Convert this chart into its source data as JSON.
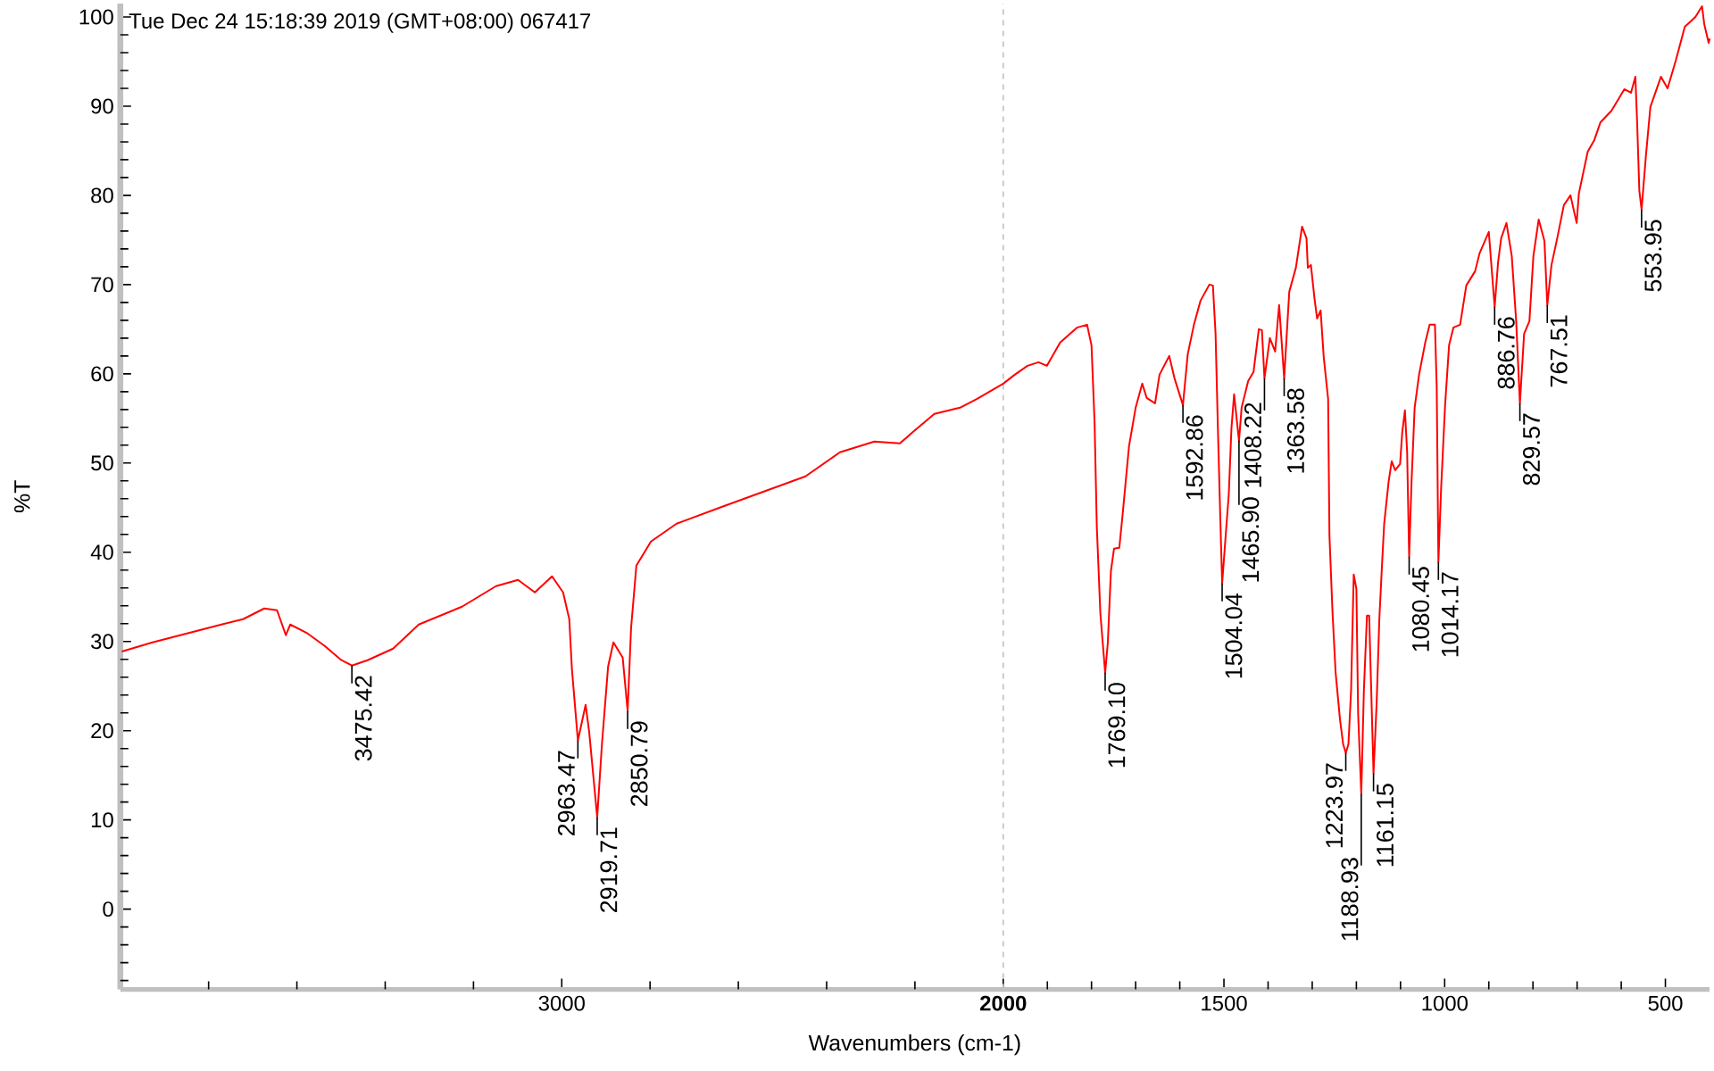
{
  "chart_data": {
    "type": "line",
    "title": "Tue Dec 24 15:18:39 2019 (GMT+08:00) 067417",
    "xlabel": "Wavenumbers (cm-1)",
    "ylabel": "%T",
    "color": "#ff0000",
    "xlim": [
      4000,
      400
    ],
    "ylim": [
      -9,
      101.5
    ],
    "xticks": [
      {
        "value": 3800,
        "label": null
      },
      {
        "value": 3600,
        "label": null
      },
      {
        "value": 3400,
        "label": null
      },
      {
        "value": 3200,
        "label": null
      },
      3000,
      {
        "value": 2800,
        "label": null
      },
      {
        "value": 2600,
        "label": null
      },
      {
        "value": 2400,
        "label": null
      },
      {
        "value": 2200,
        "label": null
      },
      {
        "value": 2000,
        "label": "**2000**"
      },
      {
        "value": 1900,
        "label": null
      },
      {
        "value": 1800,
        "label": null
      },
      {
        "value": 1700,
        "label": null
      },
      {
        "value": 1600,
        "label": null
      },
      1500,
      {
        "value": 1400,
        "label": null
      },
      {
        "value": 1300,
        "label": null
      },
      {
        "value": 1200,
        "label": null
      },
      {
        "value": 1100,
        "label": null
      },
      1000,
      {
        "value": 900,
        "label": null
      },
      {
        "value": 800,
        "label": null
      },
      {
        "value": 700,
        "label": null
      },
      {
        "value": 600,
        "label": null
      },
      500
    ],
    "yticks": [
      {
        "value": -8,
        "label": null
      },
      {
        "value": -6,
        "label": null
      },
      {
        "value": -4,
        "label": null
      },
      {
        "value": -2,
        "label": null
      },
      0,
      {
        "value": 2,
        "label": null
      },
      {
        "value": 4,
        "label": null
      },
      {
        "value": 6,
        "label": null
      },
      {
        "value": 8,
        "label": null
      },
      10,
      {
        "value": 12,
        "label": null
      },
      {
        "value": 14,
        "label": null
      },
      {
        "value": 16,
        "label": null
      },
      {
        "value": 18,
        "label": null
      },
      20,
      {
        "value": 22,
        "label": null
      },
      {
        "value": 24,
        "label": null
      },
      {
        "value": 26,
        "label": null
      },
      {
        "value": 28,
        "label": null
      },
      30,
      {
        "value": 32,
        "label": null
      },
      {
        "value": 34,
        "label": null
      },
      {
        "value": 36,
        "label": null
      },
      {
        "value": 38,
        "label": null
      },
      40,
      {
        "value": 42,
        "label": null
      },
      {
        "value": 44,
        "label": null
      },
      {
        "value": 46,
        "label": null
      },
      {
        "value": 48,
        "label": null
      },
      50,
      {
        "value": 52,
        "label": null
      },
      {
        "value": 54,
        "label": null
      },
      {
        "value": 56,
        "label": null
      },
      {
        "value": 58,
        "label": null
      },
      60,
      {
        "value": 62,
        "label": null
      },
      {
        "value": 64,
        "label": null
      },
      {
        "value": 66,
        "label": null
      },
      {
        "value": 68,
        "label": null
      },
      70,
      {
        "value": 72,
        "label": null
      },
      {
        "value": 74,
        "label": null
      },
      {
        "value": 76,
        "label": null
      },
      {
        "value": 78,
        "label": null
      },
      80,
      {
        "value": 82,
        "label": null
      },
      {
        "value": 84,
        "label": null
      },
      {
        "value": 86,
        "label": null
      },
      {
        "value": 88,
        "label": null
      },
      90,
      {
        "value": 92,
        "label": null
      },
      {
        "value": 94,
        "label": null
      },
      {
        "value": 96,
        "label": null
      },
      {
        "value": 98,
        "label": null
      },
      100
    ],
    "ref_lines": [
      {
        "axis": "x",
        "value": 2000,
        "color": "#c0c0c0",
        "line_style": "dashed"
      }
    ],
    "x": [
      3995,
      3927,
      3849,
      3771,
      3722,
      3674,
      3645,
      3625,
      3615,
      3576,
      3537,
      3499,
      3475.42,
      3440,
      3382,
      3324,
      3226,
      3149,
      3099,
      3061,
      3022,
      2997,
      2983,
      2977,
      2963.47,
      2946,
      2938,
      2919.71,
      2909,
      2895,
      2883,
      2862,
      2850.79,
      2843,
      2831,
      2798,
      2740,
      2642,
      2448,
      2370,
      2292,
      2234,
      2204,
      2156,
      2098,
      2059,
      2000,
      1974,
      1945,
      1920,
      1901,
      1871,
      1832,
      1810,
      1800,
      1793,
      1788,
      1780,
      1769.1,
      1763,
      1756,
      1749,
      1737,
      1729,
      1715,
      1700,
      1685,
      1675,
      1656,
      1646,
      1624,
      1612,
      1592.86,
      1582,
      1568,
      1553,
      1533,
      1525,
      1519,
      1514,
      1509,
      1504.04,
      1496,
      1489,
      1483,
      1477,
      1465.9,
      1460,
      1445,
      1433,
      1421,
      1414,
      1408.22,
      1396,
      1384,
      1375,
      1363.58,
      1352,
      1337,
      1323,
      1313,
      1310,
      1303,
      1295,
      1289,
      1281,
      1274,
      1264,
      1261,
      1254,
      1247,
      1237,
      1230,
      1223.97,
      1218,
      1212,
      1206,
      1200,
      1196,
      1188.93,
      1183,
      1176,
      1171,
      1166,
      1161.15,
      1154,
      1148,
      1142,
      1137,
      1127,
      1120,
      1112,
      1101,
      1096,
      1090,
      1085,
      1080.45,
      1075,
      1068,
      1058,
      1044,
      1034,
      1022,
      1018,
      1014.17,
      1008,
      999,
      990,
      980,
      965,
      951,
      931,
      921,
      900,
      886.76,
      879,
      872,
      860,
      848,
      838,
      829.57,
      820,
      808,
      799,
      787,
      774,
      767.51,
      758,
      745,
      730,
      715,
      701,
      696,
      676,
      661,
      647,
      622,
      593,
      578,
      568,
      564,
      559,
      553.95,
      544,
      534,
      510,
      495,
      476,
      456,
      432,
      417,
      412,
      402,
      400
    ],
    "values": [
      28.9,
      29.9,
      30.9,
      31.9,
      32.5,
      33.7,
      33.5,
      30.7,
      31.9,
      30.9,
      29.5,
      27.9,
      27.3,
      27.9,
      29.2,
      31.9,
      33.9,
      36.2,
      36.9,
      35.5,
      37.3,
      35.5,
      32.5,
      26.9,
      18.9,
      22.9,
      19.9,
      10.3,
      18.5,
      27.2,
      29.9,
      28.2,
      22.2,
      31.5,
      38.5,
      41.2,
      43.2,
      45.0,
      48.5,
      51.2,
      52.4,
      52.2,
      53.5,
      55.5,
      56.2,
      57.2,
      58.9,
      59.9,
      60.9,
      61.3,
      60.9,
      63.5,
      65.2,
      65.5,
      63.2,
      54.5,
      42.9,
      33.2,
      26.5,
      29.9,
      37.9,
      40.4,
      40.5,
      44.5,
      51.9,
      56.2,
      58.9,
      57.3,
      56.7,
      59.9,
      62.0,
      59.5,
      56.5,
      62.2,
      65.5,
      68.2,
      70.0,
      69.9,
      64.5,
      54.5,
      45.2,
      36.5,
      41.9,
      46.5,
      53.9,
      57.7,
      52.5,
      56.2,
      59.2,
      60.2,
      65.0,
      64.9,
      59.5,
      64.0,
      62.5,
      67.7,
      59.5,
      69.2,
      71.9,
      76.5,
      75.2,
      71.9,
      72.2,
      68.5,
      66.2,
      67.1,
      61.9,
      57.2,
      41.9,
      33.2,
      26.5,
      21.2,
      18.5,
      17.5,
      18.5,
      24.5,
      37.5,
      35.9,
      21.9,
      12.9,
      24.5,
      32.9,
      32.9,
      23.9,
      15.2,
      23.2,
      32.5,
      38.5,
      43.2,
      47.9,
      50.2,
      49.2,
      49.9,
      53.5,
      55.9,
      51.2,
      39.5,
      47.9,
      56.2,
      59.9,
      63.5,
      65.5,
      65.5,
      58.5,
      38.9,
      47.2,
      56.5,
      63.2,
      65.2,
      65.5,
      69.9,
      71.5,
      73.5,
      75.9,
      67.5,
      72.5,
      75.2,
      76.9,
      73.2,
      65.9,
      56.7,
      64.5,
      65.9,
      73.2,
      77.3,
      74.9,
      67.7,
      72.2,
      75.2,
      78.9,
      80.0,
      76.9,
      80.2,
      84.9,
      86.2,
      88.2,
      89.5,
      91.9,
      91.5,
      93.3,
      88.2,
      80.5,
      78.4,
      84.5,
      89.9,
      93.3,
      92.0,
      95.2,
      98.9,
      100.0,
      101.2,
      99.2,
      97.1,
      97.5
    ],
    "annotations": [
      {
        "text": "3475.42",
        "x": 3475.42,
        "y": 27.3
      },
      {
        "text": "2963.47",
        "x": 2963.47,
        "y": 18.9
      },
      {
        "text": "2919.71",
        "x": 2919.71,
        "y": 10.3
      },
      {
        "text": "2850.79",
        "x": 2850.79,
        "y": 22.2
      },
      {
        "text": "1769.10",
        "x": 1769.1,
        "y": 26.5
      },
      {
        "text": "1592.86",
        "x": 1592.86,
        "y": 56.5
      },
      {
        "text": "1504.04",
        "x": 1504.04,
        "y": 36.5
      },
      {
        "text": "1465.90",
        "x": 1465.9,
        "y": 52.5
      },
      {
        "text": "1408.22",
        "x": 1408.22,
        "y": 59.5
      },
      {
        "text": "1363.58",
        "x": 1363.58,
        "y": 59.5
      },
      {
        "text": "1223.97",
        "x": 1223.97,
        "y": 17.5
      },
      {
        "text": "1188.93",
        "x": 1188.93,
        "y": 12.9
      },
      {
        "text": "1161.15",
        "x": 1161.15,
        "y": 15.2
      },
      {
        "text": "1080.45",
        "x": 1080.45,
        "y": 39.5
      },
      {
        "text": "1014.17",
        "x": 1014.17,
        "y": 38.9
      },
      {
        "text": "886.76",
        "x": 886.76,
        "y": 67.5
      },
      {
        "text": "829.57",
        "x": 829.57,
        "y": 56.7
      },
      {
        "text": "767.51",
        "x": 767.51,
        "y": 67.7
      },
      {
        "text": "553.95",
        "x": 553.95,
        "y": 78.4
      }
    ]
  }
}
